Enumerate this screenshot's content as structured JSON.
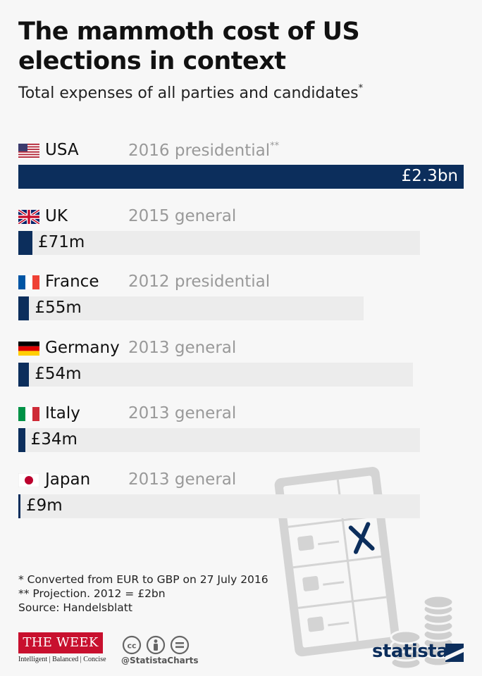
{
  "header": {
    "title": "The mammoth cost of US elections in context",
    "subtitle": "Total expenses of all parties and candidates",
    "subtitle_mark": "*"
  },
  "chart_data": {
    "type": "bar",
    "orientation": "horizontal",
    "unit": "GBP",
    "categories": [
      "USA",
      "UK",
      "France",
      "Germany",
      "Italy",
      "Japan"
    ],
    "values": [
      2300,
      71,
      55,
      54,
      34,
      9
    ],
    "value_labels": [
      "£2.3bn",
      "£71m",
      "£55m",
      "£54m",
      "£34m",
      "£9m"
    ],
    "elections": [
      "2016 presidential",
      "2015 general",
      "2012 presidential",
      "2013 general",
      "2013 general",
      "2013 general"
    ],
    "election_marks": [
      "**",
      "",
      "",
      "",
      "",
      ""
    ],
    "flags": [
      "flag-usa-icon",
      "flag-uk-icon",
      "flag-france-icon",
      "flag-germany-icon",
      "flag-italy-icon",
      "flag-japan-icon"
    ],
    "colors": {
      "bar": "#0c2e5c",
      "track": "#ececec"
    }
  },
  "footnotes": [
    "*   Converted from EUR to GBP on 27 July 2016",
    "** Projection. 2012 = £2bn",
    "Source: Handelsblatt"
  ],
  "branding": {
    "the_week": "THE WEEK",
    "the_week_tagline": "Intelligent | Balanced | Concise",
    "handle": "@StatistaCharts",
    "statista": "statista",
    "icons": [
      "cc-icon",
      "person-icon",
      "equals-icon",
      "ballot-icon",
      "coins-icon"
    ]
  }
}
